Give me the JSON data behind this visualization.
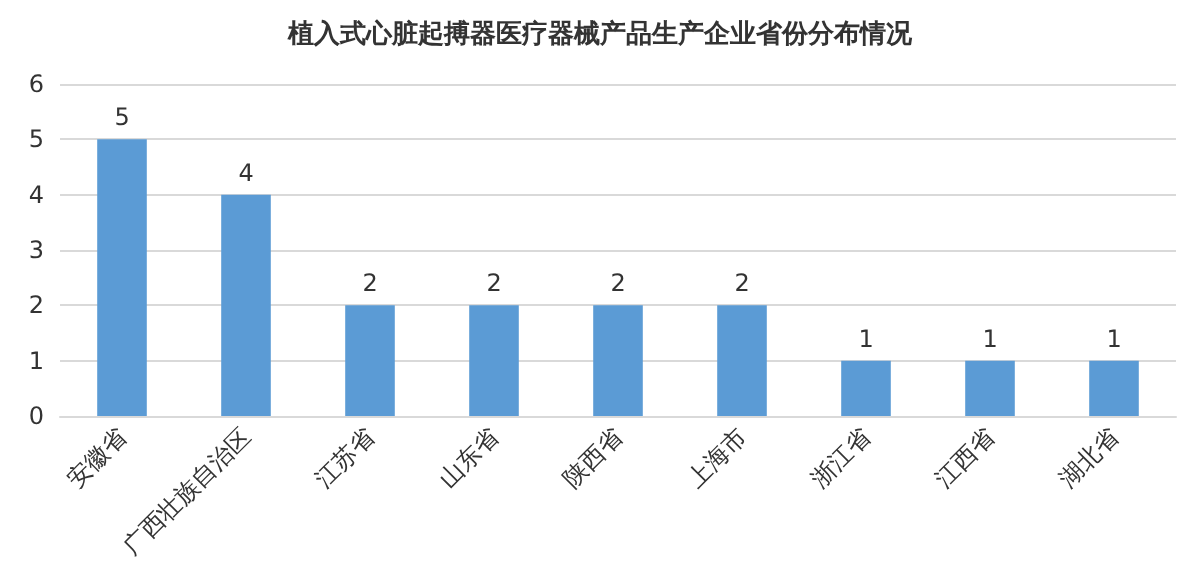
{
  "chart_data": {
    "type": "bar",
    "title": "植入式心脏起搏器医疗器械产品生产企业省份分布情况",
    "categories": [
      "安徽省",
      "广西壮族自治区",
      "江苏省",
      "山东省",
      "陕西省",
      "上海市",
      "浙江省",
      "江西省",
      "湖北省"
    ],
    "values": [
      5,
      4,
      2,
      2,
      2,
      2,
      1,
      1,
      1
    ],
    "color": "#5b9bd5",
    "ylim": [
      0,
      6
    ],
    "yticks": [
      0,
      1,
      2,
      3,
      4,
      5,
      6
    ],
    "grid": "y",
    "data_labels": true
  }
}
